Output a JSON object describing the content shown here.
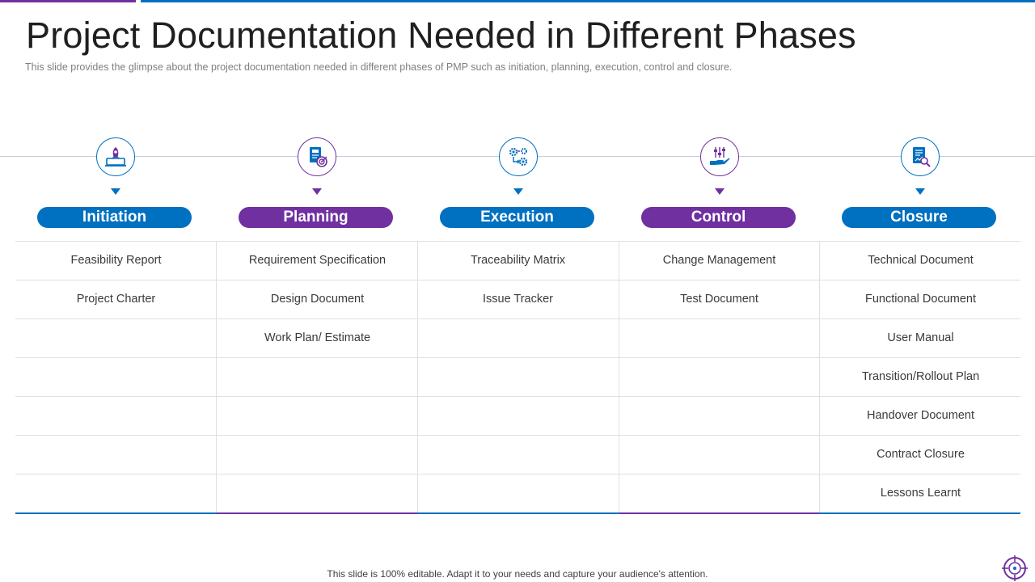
{
  "slide": {
    "title": "Project Documentation Needed in Different Phases",
    "subtitle": "This slide provides  the glimpse about the project documentation  needed in different  phases of PMP such as initiation, planning, execution, control and closure.",
    "footer": "This slide is 100% editable. Adapt it to your needs and capture your audience's attention."
  },
  "colors": {
    "blue": "#0070c0",
    "purple": "#7030a0"
  },
  "phases": [
    {
      "label": "Initiation",
      "icon": "rocket-laptop-icon",
      "color": "blue",
      "documents": [
        "Feasibility Report",
        "Project Charter"
      ]
    },
    {
      "label": "Planning",
      "icon": "plan-target-document-icon",
      "color": "purple",
      "documents": [
        "Requirement Specification",
        "Design Document",
        "Work Plan/ Estimate"
      ]
    },
    {
      "label": "Execution",
      "icon": "gears-flow-icon",
      "color": "blue",
      "documents": [
        "Traceability Matrix",
        "Issue Tracker"
      ]
    },
    {
      "label": "Control",
      "icon": "hand-sliders-icon",
      "color": "purple",
      "documents": [
        "Change Management",
        "Test Document"
      ]
    },
    {
      "label": "Closure",
      "icon": "document-magnifier-icon",
      "color": "blue",
      "documents": [
        "Technical Document",
        "Functional Document",
        "User Manual",
        "Transition/Rollout Plan",
        "Handover Document",
        "Contract Closure",
        "Lessons Learnt"
      ]
    }
  ]
}
